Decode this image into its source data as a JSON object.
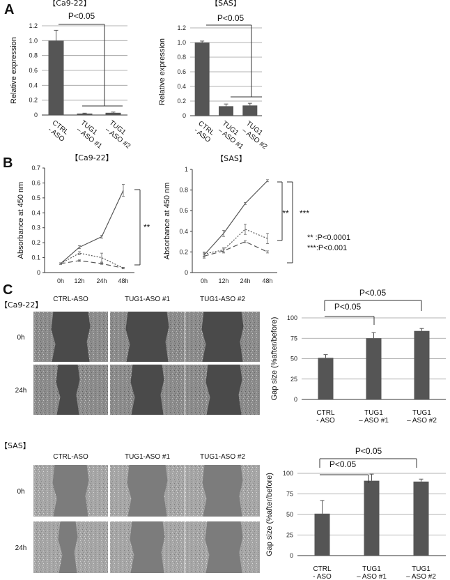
{
  "panels": {
    "A": "A",
    "B": "B",
    "C": "C"
  },
  "chart_data": [
    {
      "id": "A1",
      "type": "bar",
      "title": "【Ca9-22】",
      "ylabel": "Relative expression",
      "categories": [
        [
          "CTRL",
          "- ASO"
        ],
        [
          "TUG1",
          "– ASO #1"
        ],
        [
          "TUG1",
          "– ASO #2"
        ]
      ],
      "values": [
        1.0,
        0.02,
        0.03
      ],
      "errors": [
        0.14,
        0.005,
        0.01
      ],
      "ylim": [
        0,
        1.2
      ],
      "yticks": [
        "0",
        "0.2",
        "0.4",
        "0.6",
        "0.8",
        "1.0",
        "1.2"
      ],
      "grid": true,
      "significance": "P<0.05",
      "bar_color": "#555555"
    },
    {
      "id": "A2",
      "type": "bar",
      "title": "【SAS】",
      "ylabel": "Relative expression",
      "categories": [
        [
          "CTRL",
          "- ASO"
        ],
        [
          "TUG1",
          "– ASO #1"
        ],
        [
          "TUG1",
          "– ASO #2"
        ]
      ],
      "values": [
        1.0,
        0.13,
        0.14
      ],
      "errors": [
        0.02,
        0.03,
        0.03
      ],
      "ylim": [
        0,
        1.2
      ],
      "yticks": [
        "0",
        "0.2",
        "0.4",
        "0.6",
        "0.8",
        "1.0",
        "1.2"
      ],
      "grid": true,
      "significance": "P<0.05",
      "bar_color": "#555555"
    },
    {
      "id": "B1",
      "type": "line",
      "title": "【Ca9-22】",
      "ylabel": "Absorbance at 450 nm",
      "x": [
        "0h",
        "12h",
        "24h",
        "48h"
      ],
      "series": [
        {
          "style": "solid",
          "values": [
            0.06,
            0.17,
            0.24,
            0.55
          ],
          "errors": [
            0.005,
            0.01,
            0.01,
            0.04
          ]
        },
        {
          "style": "dotted",
          "values": [
            0.06,
            0.13,
            0.1,
            0.03
          ],
          "errors": [
            0.005,
            0.01,
            0.03,
            0.005
          ]
        },
        {
          "style": "dashed",
          "values": [
            0.06,
            0.08,
            0.06,
            0.03
          ],
          "errors": [
            0.005,
            0.005,
            0.005,
            0.005
          ]
        }
      ],
      "ylim": [
        0,
        0.7
      ],
      "yticks": [
        "0",
        "0.1",
        "0.2",
        "0.3",
        "0.4",
        "0.5",
        "0.6",
        "0.7"
      ],
      "grid": false,
      "significance": "**"
    },
    {
      "id": "B2",
      "type": "line",
      "title": "【SAS】",
      "ylabel": "Absorbance at 450 nm",
      "x": [
        "0h",
        "12h",
        "24h",
        "48h"
      ],
      "series": [
        {
          "style": "solid",
          "values": [
            0.17,
            0.38,
            0.67,
            0.89
          ],
          "errors": [
            0.02,
            0.03,
            0.01,
            0.01
          ]
        },
        {
          "style": "dotted",
          "values": [
            0.18,
            0.22,
            0.42,
            0.33
          ],
          "errors": [
            0.02,
            0.02,
            0.05,
            0.05
          ]
        },
        {
          "style": "dashed",
          "values": [
            0.16,
            0.21,
            0.3,
            0.2
          ],
          "errors": [
            0.02,
            0.02,
            0.01,
            0.01
          ]
        }
      ],
      "ylim": [
        0,
        1.0
      ],
      "yticks": [
        "0",
        "0.2",
        "0.4",
        "0.6",
        "0.8",
        "1"
      ],
      "grid": false,
      "significance": [
        "**",
        "***"
      ]
    },
    {
      "id": "C1",
      "type": "bar",
      "title": "",
      "ylabel": "Gap size (%after/before)",
      "categories": [
        [
          "CTRL",
          "- ASO"
        ],
        [
          "TUG1",
          "– ASO #1"
        ],
        [
          "TUG1",
          "– ASO #2"
        ]
      ],
      "values": [
        51,
        75,
        84
      ],
      "errors": [
        4,
        7,
        3
      ],
      "ylim": [
        0,
        100
      ],
      "yticks": [
        "0",
        "25",
        "50",
        "75",
        "100"
      ],
      "grid": true,
      "significance": [
        "P<0.05",
        "P<0.05"
      ],
      "bar_color": "#555555"
    },
    {
      "id": "C2",
      "type": "bar",
      "title": "",
      "ylabel": "Gap size (%after/before)",
      "categories": [
        [
          "CTRL",
          "- ASO"
        ],
        [
          "TUG1",
          "– ASO #1"
        ],
        [
          "TUG1",
          "– ASO #2"
        ]
      ],
      "values": [
        51,
        91,
        90
      ],
      "errors": [
        16,
        8,
        3
      ],
      "ylim": [
        0,
        100
      ],
      "yticks": [
        "0",
        "25",
        "50",
        "75",
        "100"
      ],
      "grid": true,
      "significance": [
        "P<0.05",
        "P<0.05"
      ],
      "bar_color": "#555555"
    }
  ],
  "notes": {
    "p1": "** :P<0.0001",
    "p2": "***:P<0.001"
  },
  "micro": {
    "ca_title": "【Ca9-22】",
    "sas_title": "【SAS】",
    "col1": "CTRL-ASO",
    "col2": "TUG1-ASO #1",
    "col3": "TUG1-ASO #2",
    "row0": "0h",
    "row24": "24h",
    "ca_bg": "#8a8a8a",
    "ca_gap": "#4a4a4a",
    "sas_bg": "#a8a8a8",
    "sas_gap": "#7c7c7c"
  }
}
